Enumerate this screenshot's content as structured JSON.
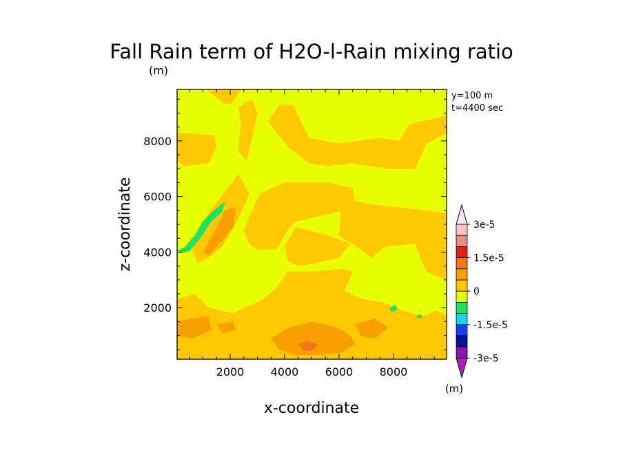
{
  "chart_data": {
    "type": "heatmap",
    "title": "Fall Rain term of H2O-l-Rain mixing ratio",
    "title_unit": "(m)",
    "xlabel": "x-coordinate",
    "ylabel": "z-coordinate",
    "xlim": [
      50,
      9950
    ],
    "ylim": [
      150,
      9850
    ],
    "x_ticks": [
      2000,
      4000,
      6000,
      8000
    ],
    "y_ticks": [
      2000,
      4000,
      6000,
      8000
    ],
    "annotations": [
      "y=100 m",
      "t=4400 sec"
    ],
    "colorbar": {
      "tick_labels": [
        "3e-5",
        "1.5e-5",
        "0",
        "-1.5e-5",
        "-3e-5"
      ],
      "unit": "(m)",
      "levels_top_to_bottom": [
        {
          "color": "#f8c4c8"
        },
        {
          "color": "#f08a8a"
        },
        {
          "color": "#e82010"
        },
        {
          "color": "#f07818"
        },
        {
          "color": "#f8a000"
        },
        {
          "color": "#ffc800"
        },
        {
          "color": "#e8ff00"
        },
        {
          "color": "#20e060"
        },
        {
          "color": "#10d8e8"
        },
        {
          "color": "#1840f0"
        },
        {
          "color": "#0010a0"
        },
        {
          "color": "#9010b0"
        }
      ],
      "under_color": "#b020b8",
      "over_color": "#fce8ec"
    },
    "background_level_color": "#e8ff00",
    "regions": [
      {
        "level_color": "#ffc800",
        "points": [
          [
            50,
            8300
          ],
          [
            1400,
            8200
          ],
          [
            1500,
            7800
          ],
          [
            1200,
            7200
          ],
          [
            300,
            7100
          ],
          [
            50,
            7300
          ]
        ]
      },
      {
        "level_color": "#ffc800",
        "points": [
          [
            1200,
            9800
          ],
          [
            2400,
            9850
          ],
          [
            2000,
            9300
          ],
          [
            1700,
            9400
          ]
        ]
      },
      {
        "level_color": "#ffc800",
        "points": [
          [
            2300,
            9200
          ],
          [
            2800,
            9500
          ],
          [
            3000,
            9000
          ],
          [
            2600,
            7300
          ],
          [
            2300,
            7600
          ],
          [
            2400,
            8600
          ]
        ]
      },
      {
        "level_color": "#ffc800",
        "points": [
          [
            4300,
            9300
          ],
          [
            4900,
            8100
          ],
          [
            6000,
            7900
          ],
          [
            7500,
            8100
          ],
          [
            8200,
            8000
          ],
          [
            8600,
            8600
          ],
          [
            9950,
            8900
          ],
          [
            9950,
            8300
          ],
          [
            9200,
            7900
          ],
          [
            8800,
            7000
          ],
          [
            7800,
            7000
          ],
          [
            6500,
            7200
          ],
          [
            5600,
            7100
          ],
          [
            4900,
            7200
          ],
          [
            4100,
            7800
          ],
          [
            3400,
            8700
          ],
          [
            3800,
            9300
          ]
        ]
      },
      {
        "level_color": "#ffc800",
        "points": [
          [
            3100,
            6100
          ],
          [
            4000,
            6500
          ],
          [
            5600,
            6500
          ],
          [
            6500,
            6300
          ],
          [
            6600,
            5600
          ],
          [
            5300,
            5300
          ],
          [
            4400,
            5100
          ],
          [
            4100,
            4800
          ],
          [
            3700,
            4100
          ],
          [
            3000,
            4100
          ],
          [
            2700,
            4300
          ],
          [
            2500,
            4800
          ],
          [
            2800,
            5500
          ]
        ]
      },
      {
        "level_color": "#ffc800",
        "points": [
          [
            6100,
            5900
          ],
          [
            7300,
            5700
          ],
          [
            8300,
            5600
          ],
          [
            9100,
            5500
          ],
          [
            9950,
            5400
          ],
          [
            9950,
            3000
          ],
          [
            9200,
            3300
          ],
          [
            8800,
            4300
          ],
          [
            7700,
            4200
          ],
          [
            7200,
            3800
          ],
          [
            6500,
            4300
          ],
          [
            6000,
            4600
          ]
        ]
      },
      {
        "level_color": "#ffc800",
        "points": [
          [
            4400,
            4900
          ],
          [
            5600,
            4600
          ],
          [
            6400,
            4300
          ],
          [
            6000,
            3800
          ],
          [
            5100,
            3600
          ],
          [
            4500,
            3500
          ],
          [
            4100,
            3700
          ],
          [
            4000,
            4200
          ]
        ]
      },
      {
        "level_color": "#ffc800",
        "points": [
          [
            1200,
            5400
          ],
          [
            2300,
            6800
          ],
          [
            2700,
            6100
          ],
          [
            2300,
            5200
          ],
          [
            1700,
            4200
          ],
          [
            1200,
            3800
          ],
          [
            800,
            3600
          ],
          [
            600,
            4100
          ]
        ]
      },
      {
        "level_color": "#ffc800",
        "points": [
          [
            50,
            2300
          ],
          [
            700,
            2500
          ],
          [
            1200,
            2000
          ],
          [
            2100,
            1800
          ],
          [
            3200,
            2300
          ],
          [
            3700,
            2700
          ],
          [
            4100,
            3300
          ],
          [
            5100,
            3300
          ],
          [
            6100,
            3400
          ],
          [
            6500,
            3300
          ],
          [
            6200,
            2600
          ],
          [
            6900,
            2300
          ],
          [
            7600,
            2200
          ],
          [
            8300,
            1900
          ],
          [
            9100,
            1700
          ],
          [
            9600,
            1900
          ],
          [
            9950,
            1700
          ],
          [
            9950,
            150
          ],
          [
            50,
            150
          ]
        ]
      },
      {
        "level_color": "#f8a000",
        "points": [
          [
            1000,
            4000
          ],
          [
            1400,
            4700
          ],
          [
            1800,
            5500
          ],
          [
            2200,
            5600
          ],
          [
            2100,
            4900
          ],
          [
            1700,
            4400
          ],
          [
            1200,
            3900
          ]
        ]
      },
      {
        "level_color": "#f8a000",
        "points": [
          [
            50,
            1500
          ],
          [
            1200,
            1700
          ],
          [
            1300,
            1200
          ],
          [
            600,
            900
          ],
          [
            50,
            1000
          ]
        ]
      },
      {
        "level_color": "#f8a000",
        "points": [
          [
            3500,
            900
          ],
          [
            4200,
            1300
          ],
          [
            5000,
            1500
          ],
          [
            5900,
            1300
          ],
          [
            6400,
            1000
          ],
          [
            6600,
            700
          ],
          [
            6100,
            400
          ],
          [
            5300,
            300
          ],
          [
            4400,
            300
          ],
          [
            3800,
            500
          ]
        ]
      },
      {
        "level_color": "#f8a000",
        "points": [
          [
            6600,
            1400
          ],
          [
            7300,
            1600
          ],
          [
            7800,
            1300
          ],
          [
            7300,
            900
          ],
          [
            6800,
            1000
          ]
        ]
      },
      {
        "level_color": "#f8a000",
        "points": [
          [
            1500,
            1400
          ],
          [
            2100,
            1500
          ],
          [
            2200,
            1200
          ],
          [
            1700,
            1100
          ]
        ]
      },
      {
        "level_color": "#f07818",
        "points": [
          [
            4500,
            700
          ],
          [
            4800,
            800
          ],
          [
            5200,
            700
          ],
          [
            5100,
            500
          ],
          [
            4700,
            450
          ]
        ]
      },
      {
        "level_color": "#20e060",
        "points": [
          [
            50,
            4050
          ],
          [
            300,
            4150
          ],
          [
            700,
            4600
          ],
          [
            1000,
            5100
          ],
          [
            1400,
            5500
          ],
          [
            1800,
            5800
          ],
          [
            1700,
            5450
          ],
          [
            1300,
            5100
          ],
          [
            900,
            4500
          ],
          [
            500,
            4050
          ],
          [
            300,
            4000
          ]
        ]
      },
      {
        "level_color": "#20e060",
        "points": [
          [
            7850,
            1950
          ],
          [
            8050,
            2100
          ],
          [
            8150,
            1950
          ],
          [
            7950,
            1850
          ]
        ]
      },
      {
        "level_color": "#20e060",
        "points": [
          [
            8850,
            1700
          ],
          [
            9000,
            1750
          ],
          [
            9050,
            1650
          ],
          [
            8900,
            1620
          ]
        ]
      }
    ]
  }
}
